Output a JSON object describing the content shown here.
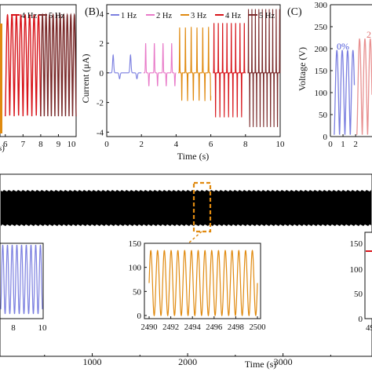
{
  "chart_data": [
    {
      "panel": "A",
      "type": "line",
      "panel_label": "",
      "legend": [
        "4 Hz",
        "5 Hz"
      ],
      "series": [
        {
          "name": "4 Hz",
          "color": "#d8141a",
          "x_range": [
            6,
            8
          ],
          "freq_hz": 4
        },
        {
          "name": "5 Hz",
          "color": "#7a2a2a",
          "x_range": [
            8,
            10
          ],
          "freq_hz": 5
        }
      ],
      "xticks": [
        "6",
        "7",
        "8",
        "9",
        "10"
      ],
      "xlim": [
        5.7,
        10
      ],
      "xlabel": "s)"
    },
    {
      "panel": "B",
      "type": "line",
      "panel_label": "(B)",
      "xlabel": "Time (s)",
      "ylabel": "Current (μA)",
      "xlim": [
        0,
        10
      ],
      "ylim": [
        -4.3,
        4.6
      ],
      "xticks": [
        "0",
        "2",
        "4",
        "6",
        "8",
        "10"
      ],
      "yticks": [
        "-4",
        "-2",
        "0",
        "2",
        "4"
      ],
      "legend_position": "top",
      "series": [
        {
          "name": "1 Hz",
          "color": "#7b7fe0",
          "x_range": [
            0,
            2
          ],
          "freq_hz": 1,
          "peak_pos": 1.2,
          "peak_neg": -0.4
        },
        {
          "name": "2 Hz",
          "color": "#e879c8",
          "x_range": [
            2,
            4
          ],
          "freq_hz": 2,
          "peak_pos": 2.0,
          "peak_neg": -0.9
        },
        {
          "name": "3 Hz",
          "color": "#e08a10",
          "x_range": [
            4,
            6
          ],
          "freq_hz": 3,
          "peak_pos": 3.1,
          "peak_neg": -1.9
        },
        {
          "name": "4 Hz",
          "color": "#d8141a",
          "x_range": [
            6,
            8
          ],
          "freq_hz": 4,
          "peak_pos": 3.5,
          "peak_neg": -3.0
        },
        {
          "name": "5 Hz",
          "color": "#7a2a2a",
          "x_range": [
            8,
            10
          ],
          "freq_hz": 5,
          "peak_pos": 4.3,
          "peak_neg": -3.7
        }
      ]
    },
    {
      "panel": "C",
      "type": "line",
      "panel_label": "(C)",
      "ylabel": "Voltage (V)",
      "xlim": [
        0,
        3.3
      ],
      "ylim": [
        0,
        300
      ],
      "xticks": [
        "0",
        "1",
        "2"
      ],
      "yticks": [
        "0",
        "50",
        "100",
        "150",
        "200",
        "250",
        "300"
      ],
      "annotation": "0%",
      "annotation_partial": "2",
      "series": [
        {
          "name": "0%",
          "color": "#7b7fe0",
          "peak": 192,
          "x_range": [
            0.3,
            1.9
          ]
        },
        {
          "name": "",
          "color": "#e89090",
          "peak": 218,
          "x_range": [
            2.1,
            3.3
          ]
        }
      ]
    },
    {
      "panel": "D",
      "type": "line",
      "xlabel": "Time (s)",
      "xticks": [
        "1000",
        "2000",
        "3000"
      ],
      "xlim": [
        0,
        3900
      ],
      "description_color": "#000000",
      "highlight": {
        "x_range": [
          2490,
          2500
        ],
        "color": "#e08a10"
      },
      "insets": [
        {
          "name": "start",
          "color": "#7b7fe0",
          "xticks": [
            "8",
            "10"
          ],
          "xtick_extra": "8",
          "xlim": [
            7,
            10
          ]
        },
        {
          "name": "middle",
          "color": "#e08a10",
          "xlim": [
            2490,
            2500
          ],
          "ylim": [
            0,
            150
          ],
          "xticks": [
            "2490",
            "2492",
            "2494",
            "2496",
            "2498",
            "2500"
          ],
          "yticks": [
            "0",
            "50",
            "100",
            "150"
          ],
          "peak": 135,
          "cycles": 16
        },
        {
          "name": "end",
          "color": "#d8141a",
          "yticks": [
            "0",
            "50",
            "100",
            "150"
          ],
          "xtick_partial": "49"
        }
      ]
    }
  ]
}
